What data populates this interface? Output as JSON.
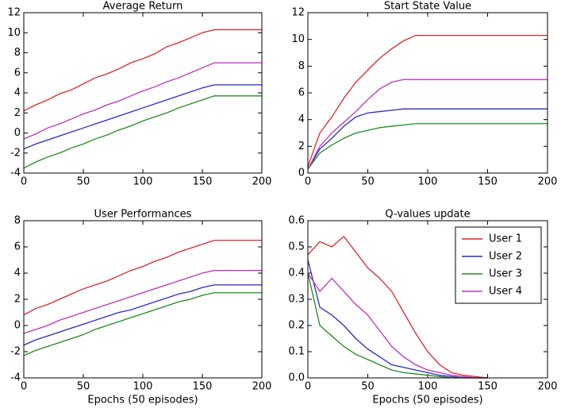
{
  "chart_data": [
    {
      "type": "line",
      "title": "Average Return",
      "x": [
        0,
        10,
        20,
        30,
        40,
        50,
        60,
        70,
        80,
        90,
        100,
        110,
        120,
        130,
        140,
        150,
        160,
        170,
        180,
        190,
        200
      ],
      "xlim": [
        0,
        200
      ],
      "xticks": [
        0,
        50,
        100,
        150,
        200
      ],
      "ylim": [
        -4,
        12
      ],
      "yticks": [
        -4,
        -2,
        0,
        2,
        4,
        6,
        8,
        10,
        12
      ],
      "series": [
        {
          "color": "#e0252a",
          "values": [
            2.2,
            2.8,
            3.3,
            3.9,
            4.3,
            4.9,
            5.5,
            5.9,
            6.4,
            7.0,
            7.4,
            7.9,
            8.6,
            9.0,
            9.5,
            10.0,
            10.3,
            10.3,
            10.3,
            10.3,
            10.3
          ]
        },
        {
          "color": "#2a2ac8",
          "values": [
            -1.6,
            -1.1,
            -0.7,
            -0.3,
            0.1,
            0.5,
            0.9,
            1.3,
            1.7,
            2.1,
            2.5,
            2.9,
            3.3,
            3.7,
            4.1,
            4.5,
            4.8,
            4.8,
            4.8,
            4.8,
            4.8
          ]
        },
        {
          "color": "#1f8c1f",
          "values": [
            -3.5,
            -2.9,
            -2.4,
            -2.0,
            -1.5,
            -1.1,
            -0.6,
            -0.2,
            0.3,
            0.7,
            1.2,
            1.6,
            2.0,
            2.5,
            2.9,
            3.3,
            3.7,
            3.7,
            3.7,
            3.7,
            3.7
          ]
        },
        {
          "color": "#c030c0",
          "values": [
            -0.6,
            -0.1,
            0.5,
            0.9,
            1.4,
            1.9,
            2.3,
            2.8,
            3.2,
            3.7,
            4.2,
            4.6,
            5.1,
            5.5,
            6.0,
            6.5,
            7.0,
            7.0,
            7.0,
            7.0,
            7.0
          ]
        }
      ]
    },
    {
      "type": "line",
      "title": "Start State Value",
      "x": [
        0,
        10,
        20,
        30,
        40,
        50,
        60,
        70,
        80,
        90,
        100,
        110,
        120,
        130,
        140,
        150,
        160,
        170,
        180,
        190,
        200
      ],
      "xlim": [
        0,
        200
      ],
      "xticks": [
        0,
        50,
        100,
        150,
        200
      ],
      "ylim": [
        0,
        12
      ],
      "yticks": [
        0,
        2,
        4,
        6,
        8,
        10,
        12
      ],
      "series": [
        {
          "color": "#e0252a",
          "values": [
            0.5,
            3.0,
            4.2,
            5.6,
            6.8,
            7.7,
            8.6,
            9.3,
            9.9,
            10.3,
            10.3,
            10.3,
            10.3,
            10.3,
            10.3,
            10.3,
            10.3,
            10.3,
            10.3,
            10.3,
            10.3
          ]
        },
        {
          "color": "#2a2ac8",
          "values": [
            0.3,
            1.8,
            2.6,
            3.5,
            4.2,
            4.5,
            4.6,
            4.7,
            4.8,
            4.8,
            4.8,
            4.8,
            4.8,
            4.8,
            4.8,
            4.8,
            4.8,
            4.8,
            4.8,
            4.8,
            4.8
          ]
        },
        {
          "color": "#1f8c1f",
          "values": [
            0.3,
            1.5,
            2.1,
            2.6,
            3.0,
            3.2,
            3.4,
            3.5,
            3.6,
            3.7,
            3.7,
            3.7,
            3.7,
            3.7,
            3.7,
            3.7,
            3.7,
            3.7,
            3.7,
            3.7,
            3.7
          ]
        },
        {
          "color": "#c030c0",
          "values": [
            0.3,
            2.0,
            3.0,
            3.8,
            4.6,
            5.5,
            6.3,
            6.8,
            7.0,
            7.0,
            7.0,
            7.0,
            7.0,
            7.0,
            7.0,
            7.0,
            7.0,
            7.0,
            7.0,
            7.0,
            7.0
          ]
        }
      ]
    },
    {
      "type": "line",
      "title": "User Performances",
      "x_label": "Epochs (50 episodes)",
      "x": [
        0,
        10,
        20,
        30,
        40,
        50,
        60,
        70,
        80,
        90,
        100,
        110,
        120,
        130,
        140,
        150,
        160,
        170,
        180,
        190,
        200
      ],
      "xlim": [
        0,
        200
      ],
      "xticks": [
        0,
        50,
        100,
        150,
        200
      ],
      "ylim": [
        -4,
        8
      ],
      "yticks": [
        -4,
        -2,
        0,
        2,
        4,
        6,
        8
      ],
      "series": [
        {
          "color": "#e0252a",
          "values": [
            0.8,
            1.3,
            1.6,
            2.0,
            2.4,
            2.8,
            3.1,
            3.4,
            3.8,
            4.2,
            4.5,
            4.9,
            5.2,
            5.6,
            5.9,
            6.2,
            6.5,
            6.5,
            6.5,
            6.5,
            6.5
          ]
        },
        {
          "color": "#2a2ac8",
          "values": [
            -1.5,
            -1.1,
            -0.8,
            -0.5,
            -0.2,
            0.1,
            0.4,
            0.7,
            1.0,
            1.2,
            1.5,
            1.8,
            2.1,
            2.4,
            2.6,
            2.9,
            3.1,
            3.1,
            3.1,
            3.1,
            3.1
          ]
        },
        {
          "color": "#1f8c1f",
          "values": [
            -2.3,
            -1.9,
            -1.6,
            -1.3,
            -1.0,
            -0.7,
            -0.3,
            0.0,
            0.3,
            0.6,
            0.9,
            1.2,
            1.5,
            1.8,
            2.0,
            2.3,
            2.5,
            2.5,
            2.5,
            2.5,
            2.5
          ]
        },
        {
          "color": "#c030c0",
          "values": [
            -0.6,
            -0.3,
            0.0,
            0.4,
            0.7,
            1.0,
            1.3,
            1.6,
            1.9,
            2.2,
            2.5,
            2.8,
            3.1,
            3.4,
            3.7,
            4.0,
            4.2,
            4.2,
            4.2,
            4.2,
            4.2
          ]
        }
      ]
    },
    {
      "type": "line",
      "title": "Q-values update",
      "x_label": "Epochs (50 episodes)",
      "x": [
        0,
        10,
        20,
        30,
        40,
        50,
        60,
        70,
        80,
        90,
        100,
        110,
        120,
        130,
        140,
        150
      ],
      "xlim": [
        0,
        200
      ],
      "xticks": [
        0,
        50,
        100,
        150,
        200
      ],
      "ylim": [
        0,
        0.6
      ],
      "yticks": [
        {
          "value": 0,
          "label": "0.0"
        },
        0.1,
        0.2,
        0.3,
        0.4,
        0.5,
        0.6
      ],
      "legend": "upper right",
      "series": [
        {
          "name": "User 1",
          "color": "#e0252a",
          "values": [
            0.47,
            0.52,
            0.5,
            0.54,
            0.48,
            0.42,
            0.38,
            0.33,
            0.25,
            0.17,
            0.1,
            0.05,
            0.02,
            0.01,
            0.005,
            0
          ]
        },
        {
          "name": "User 2",
          "color": "#2a2ac8",
          "values": [
            0.45,
            0.27,
            0.24,
            0.2,
            0.15,
            0.11,
            0.08,
            0.05,
            0.04,
            0.03,
            0.02,
            0.01,
            0.005,
            0,
            0,
            0
          ]
        },
        {
          "name": "User 3",
          "color": "#1f8c1f",
          "values": [
            0.4,
            0.2,
            0.16,
            0.12,
            0.09,
            0.07,
            0.05,
            0.03,
            0.02,
            0.015,
            0.01,
            0.005,
            0,
            0,
            0,
            0
          ]
        },
        {
          "name": "User 4",
          "color": "#c030c0",
          "values": [
            0.4,
            0.33,
            0.38,
            0.33,
            0.28,
            0.24,
            0.18,
            0.12,
            0.08,
            0.05,
            0.03,
            0.02,
            0.01,
            0.005,
            0,
            0
          ]
        }
      ]
    }
  ]
}
